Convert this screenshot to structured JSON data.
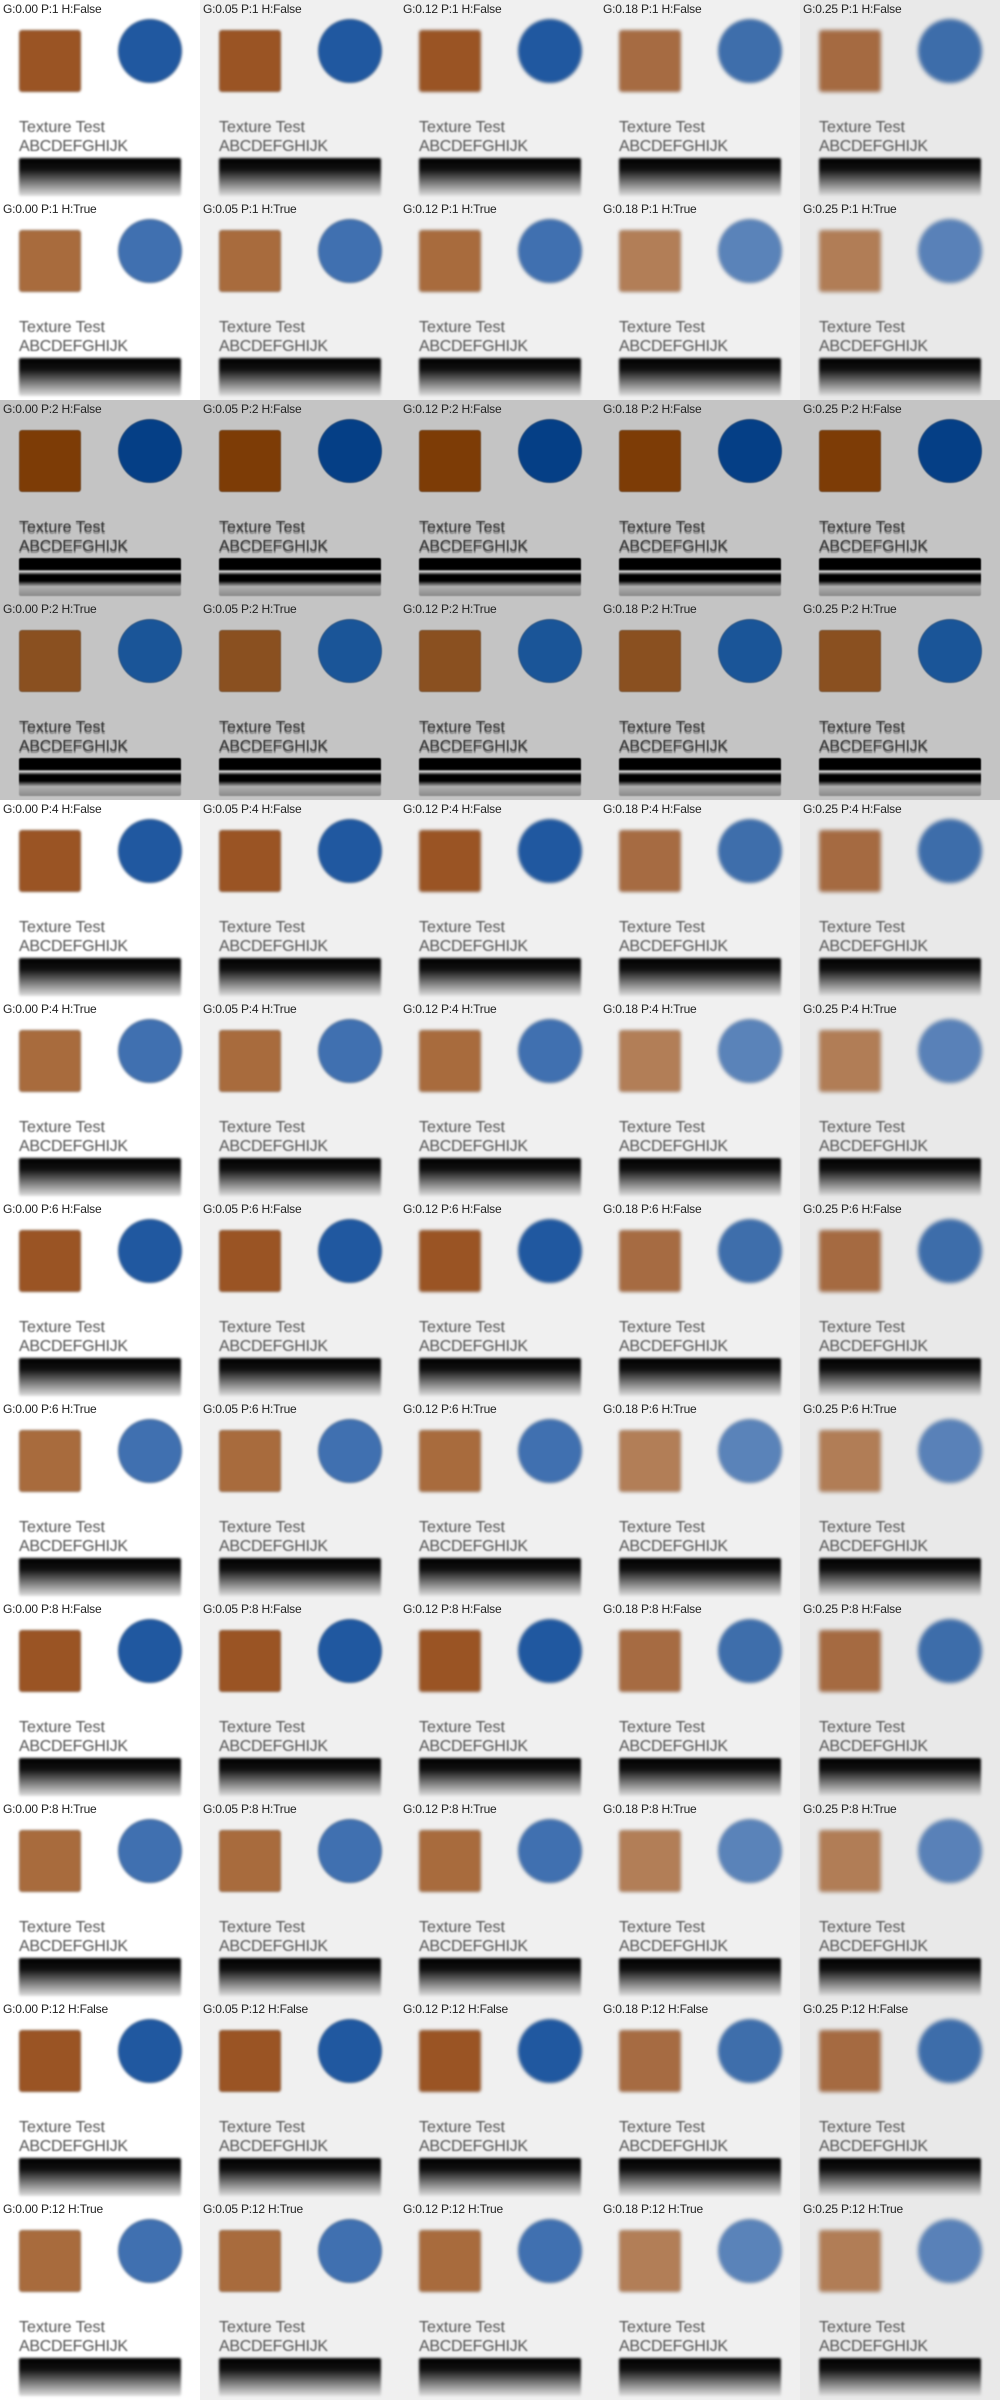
{
  "sample": {
    "title": "Texture Test",
    "alphabet": "ABCDEFGHIJK"
  },
  "colors": {
    "background_base": "#ffffff",
    "light_row_bg": "#f0f0f0",
    "dark_row_bg": "#c4c4c4",
    "square_brown": "#9a5424",
    "square_brown_light": "#a86b3d",
    "square_brown_dark": "#7d3c06",
    "circle_blue": "#2058a0",
    "circle_blue_light": "#4070b0",
    "circle_blue_dark": "#053f86"
  },
  "rows": [
    {
      "labels": [
        "G:0.00 P:1 H:False",
        "G:0.05 P:1 H:False",
        "G:0.12 P:1 H:False",
        "G:0.18 P:1 H:False",
        "G:0.25 P:1 H:False"
      ]
    },
    {
      "labels": [
        "G:0.00 P:1 H:True",
        "G:0.05 P:1 H:True",
        "G:0.12 P:1 H:True",
        "G:0.18 P:1 H:True",
        "G:0.25 P:1 H:True"
      ]
    },
    {
      "labels": [
        "G:0.00 P:2 H:False",
        "G:0.05 P:2 H:False",
        "G:0.12 P:2 H:False",
        "G:0.18 P:2 H:False",
        "G:0.25 P:2 H:False"
      ]
    },
    {
      "labels": [
        "G:0.00 P:2 H:True",
        "G:0.05 P:2 H:True",
        "G:0.12 P:2 H:True",
        "G:0.18 P:2 H:True",
        "G:0.25 P:2 H:True"
      ]
    },
    {
      "labels": [
        "G:0.00 P:4 H:False",
        "G:0.05 P:4 H:False",
        "G:0.12 P:4 H:False",
        "G:0.18 P:4 H:False",
        "G:0.25 P:4 H:False"
      ]
    },
    {
      "labels": [
        "G:0.00 P:4 H:True",
        "G:0.05 P:4 H:True",
        "G:0.12 P:4 H:True",
        "G:0.18 P:4 H:True",
        "G:0.25 P:4 H:True"
      ]
    },
    {
      "labels": [
        "G:0.00 P:6 H:False",
        "G:0.05 P:6 H:False",
        "G:0.12 P:6 H:False",
        "G:0.18 P:6 H:False",
        "G:0.25 P:6 H:False"
      ]
    },
    {
      "labels": [
        "G:0.00 P:6 H:True",
        "G:0.05 P:6 H:True",
        "G:0.12 P:6 H:True",
        "G:0.18 P:6 H:True",
        "G:0.25 P:6 H:True"
      ]
    },
    {
      "labels": [
        "G:0.00 P:8 H:False",
        "G:0.05 P:8 H:False",
        "G:0.12 P:8 H:False",
        "G:0.18 P:8 H:False",
        "G:0.25 P:8 H:False"
      ]
    },
    {
      "labels": [
        "G:0.00 P:8 H:True",
        "G:0.05 P:8 H:True",
        "G:0.12 P:8 H:True",
        "G:0.18 P:8 H:True",
        "G:0.25 P:8 H:True"
      ]
    },
    {
      "labels": [
        "G:0.00 P:12 H:False",
        "G:0.05 P:12 H:False",
        "G:0.12 P:12 H:False",
        "G:0.18 P:12 H:False",
        "G:0.25 P:12 H:False"
      ]
    },
    {
      "labels": [
        "G:0.00 P:12 H:True",
        "G:0.05 P:12 H:True",
        "G:0.12 P:12 H:True",
        "G:0.18 P:12 H:True",
        "G:0.25 P:12 H:True"
      ]
    }
  ]
}
